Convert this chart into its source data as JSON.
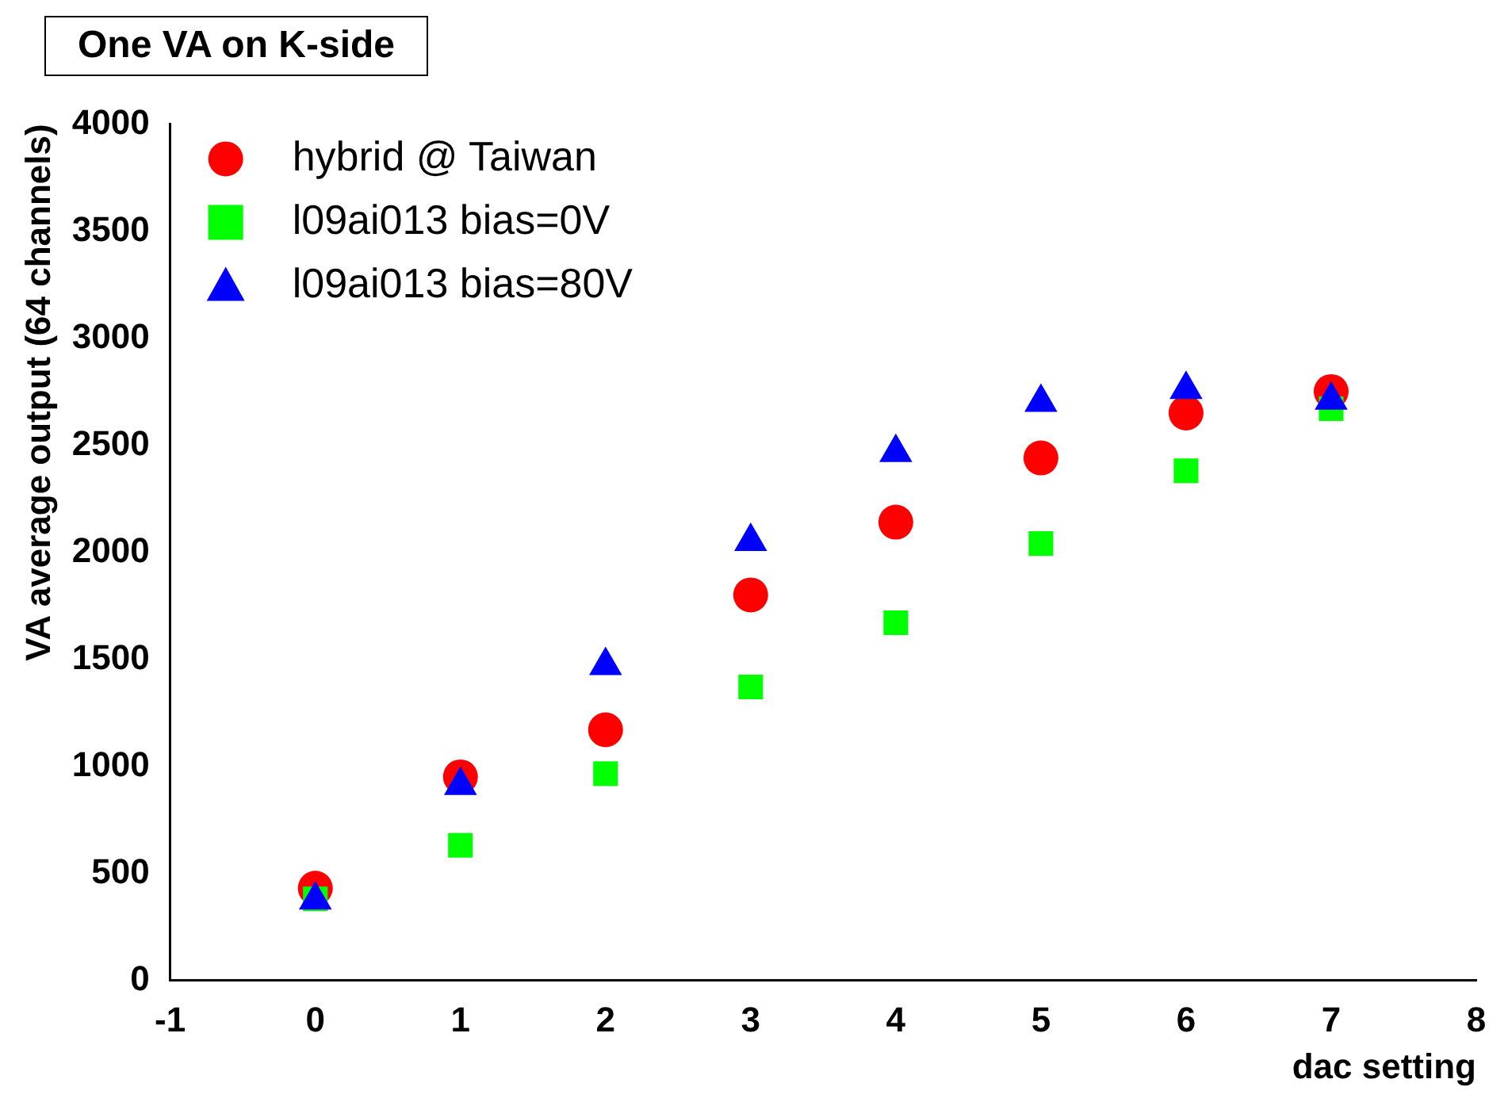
{
  "chart_data": {
    "type": "scatter",
    "title": "One VA on K-side",
    "xlabel": "dac setting",
    "ylabel": "VA average output (64 channels)",
    "x": [
      0,
      1,
      2,
      3,
      4,
      5,
      6,
      7
    ],
    "series": [
      {
        "name": "hybrid @ Taiwan",
        "color": "#ff0000",
        "marker": "circle",
        "values": [
          430,
          950,
          1170,
          1800,
          2140,
          2440,
          2650,
          2750
        ]
      },
      {
        "name": "l09ai013 bias=0V",
        "color": "#00ff00",
        "marker": "square",
        "values": [
          380,
          630,
          965,
          1370,
          1670,
          2040,
          2380,
          2670
        ]
      },
      {
        "name": "l09ai013 bias=80V",
        "color": "#0000ff",
        "marker": "triangle",
        "values": [
          375,
          910,
          1470,
          2050,
          2465,
          2700,
          2760,
          2710
        ]
      }
    ],
    "xlim": [
      -1,
      8
    ],
    "xticks": [
      -1,
      0,
      1,
      2,
      3,
      4,
      5,
      6,
      7,
      8
    ],
    "ylim": [
      0,
      4000
    ],
    "yticks": [
      0,
      500,
      1000,
      1500,
      2000,
      2500,
      3000,
      3500,
      4000
    ],
    "grid": false,
    "legend": "top left"
  }
}
